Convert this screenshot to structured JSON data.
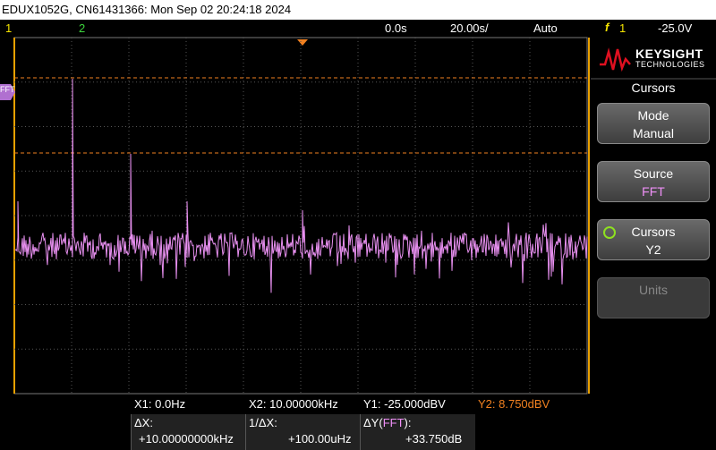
{
  "header": {
    "title": "EDUX1052G, CN61431366: Mon Sep 02 20:24:18 2024"
  },
  "status_bar": {
    "ch1": "1",
    "ch2": "2",
    "delay": "0.0s",
    "timebase": "20.00s/",
    "trigger_mode": "Auto",
    "trigger_source": "1",
    "trigger_level": "-25.0V"
  },
  "screen": {
    "fft_label": "FFT"
  },
  "sidebar": {
    "brand": "KEYSIGHT",
    "brand_sub": "TECHNOLOGIES",
    "menu_title": "Cursors",
    "buttons": [
      {
        "label": "Mode",
        "value": "Manual"
      },
      {
        "label": "Source",
        "value": "FFT"
      },
      {
        "label": "Cursors",
        "value": "Y2"
      },
      {
        "label": "Units"
      }
    ]
  },
  "readout": {
    "x1": "X1:  0.0Hz",
    "x2": "X2:  10.00000kHz",
    "y1": "Y1: -25.000dBV",
    "y2": "Y2:  8.750dBV",
    "dx_label": "ΔX:",
    "dx_value": "+10.00000000kHz",
    "inv_dx_label": "1/ΔX:",
    "inv_dx_value": "+100.00uHz",
    "dy_label_pre": "ΔY(",
    "dy_label_src": "FFT",
    "dy_label_post": "):",
    "dy_value": "+33.750dB"
  }
}
